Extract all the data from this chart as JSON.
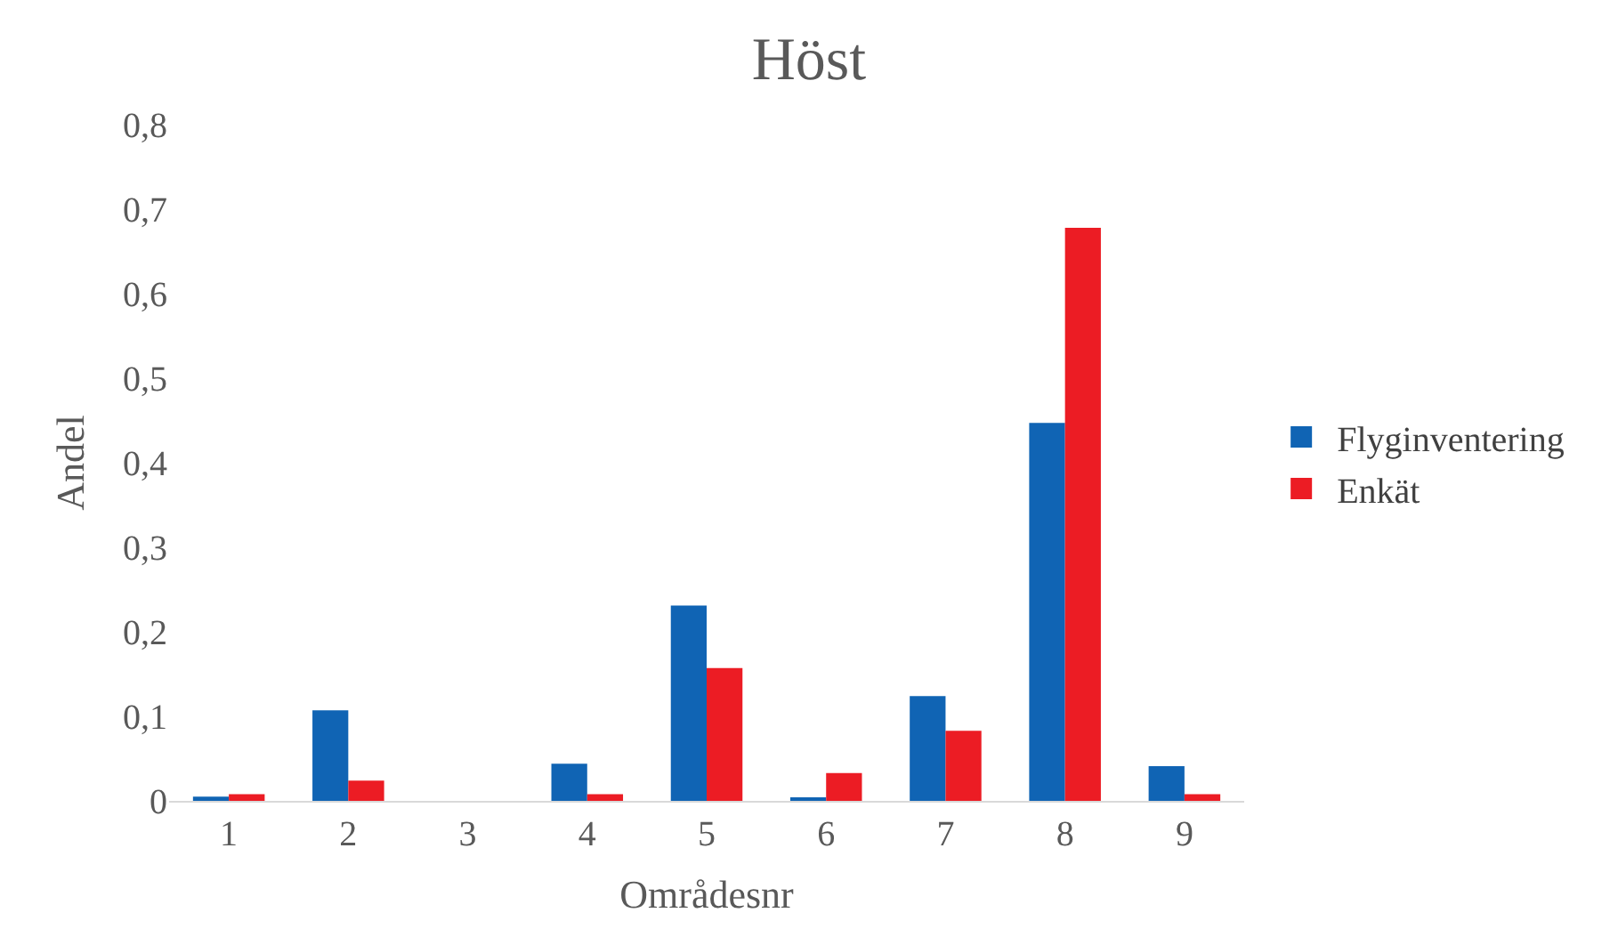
{
  "chart_data": {
    "type": "bar",
    "title": "Höst",
    "xlabel": "Områdesnr",
    "ylabel": "Andel",
    "categories": [
      "1",
      "2",
      "3",
      "4",
      "5",
      "6",
      "7",
      "8",
      "9"
    ],
    "series": [
      {
        "name": "Flyginventering",
        "color": "#1064b4",
        "values": [
          0.005,
          0.107,
          0,
          0.044,
          0.231,
          0.003,
          0.124,
          0.447,
          0.041
        ]
      },
      {
        "name": "Enkät",
        "color": "#ec1c24",
        "values": [
          0.008,
          0.024,
          0,
          0.008,
          0.157,
          0.033,
          0.083,
          0.678,
          0.008
        ]
      }
    ],
    "ylim": [
      0,
      0.8
    ],
    "yticks": [
      {
        "value": 0,
        "label": "0"
      },
      {
        "value": 0.1,
        "label": "0,1"
      },
      {
        "value": 0.2,
        "label": "0,2"
      },
      {
        "value": 0.3,
        "label": "0,3"
      },
      {
        "value": 0.4,
        "label": "0,4"
      },
      {
        "value": 0.5,
        "label": "0,5"
      },
      {
        "value": 0.6,
        "label": "0,6"
      },
      {
        "value": 0.7,
        "label": "0,7"
      },
      {
        "value": 0.8,
        "label": "0,8"
      }
    ],
    "grid": false,
    "legend": "right"
  }
}
